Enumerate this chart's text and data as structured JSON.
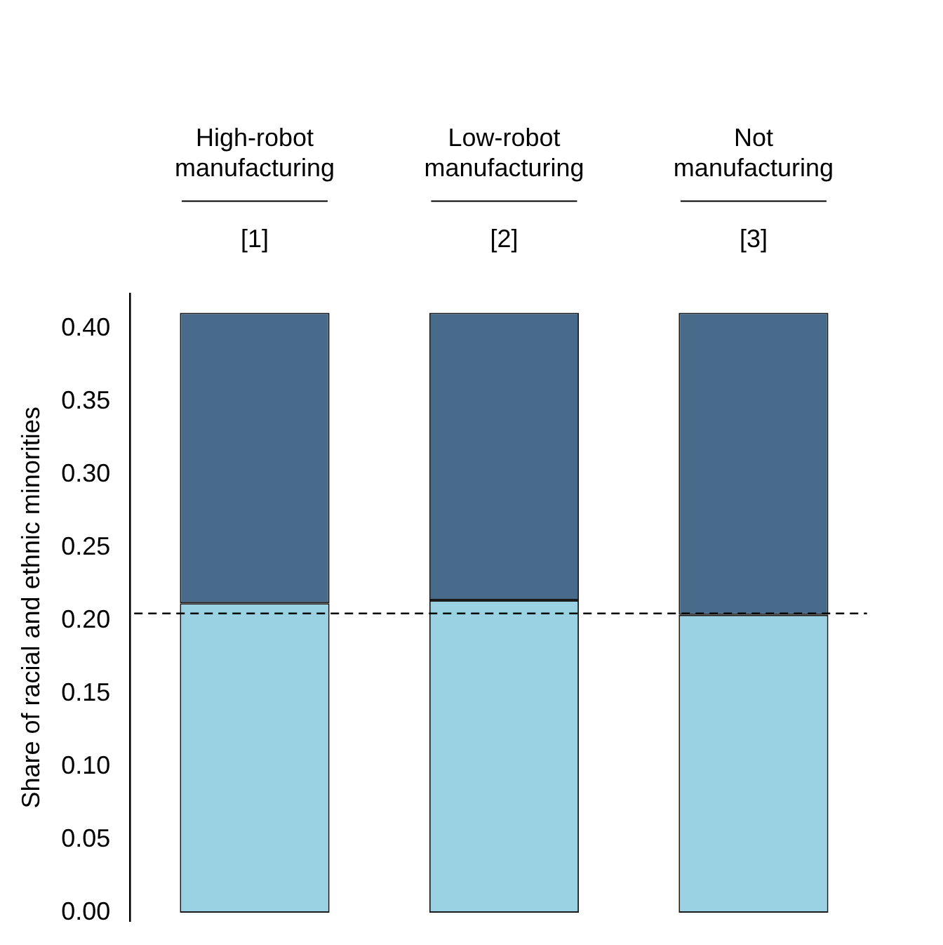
{
  "chart_data": {
    "type": "bar",
    "stacked": true,
    "ylabel": "Share of racial and ethnic minorities",
    "categories": [
      "High-robot manufacturing",
      "Low-robot manufacturing",
      "Not manufacturing"
    ],
    "series": [
      {
        "color": "#9ad2e4",
        "values": [
          0.212,
          0.214,
          0.204
        ]
      },
      {
        "color": "#486b8b",
        "values": [
          0.199,
          0.197,
          0.207
        ]
      }
    ],
    "ylim": [
      -0.006,
      0.424
    ],
    "yticks": [
      {
        "value": 0,
        "label": "0.00"
      },
      0.05,
      {
        "value": 0.1,
        "label": "0.10"
      },
      0.15,
      {
        "value": 0.2,
        "label": "0.20"
      },
      0.25,
      {
        "value": 0.3,
        "label": "0.30"
      },
      0.35,
      {
        "value": 0.4,
        "label": "0.40"
      }
    ],
    "ref_lines": [
      {
        "axis": "y",
        "value": 0.205,
        "color": "#000000",
        "line_style": "dashed"
      }
    ],
    "annotations": [
      "[1]",
      "[2]",
      "[3]"
    ],
    "grid": false,
    "legend": false
  }
}
